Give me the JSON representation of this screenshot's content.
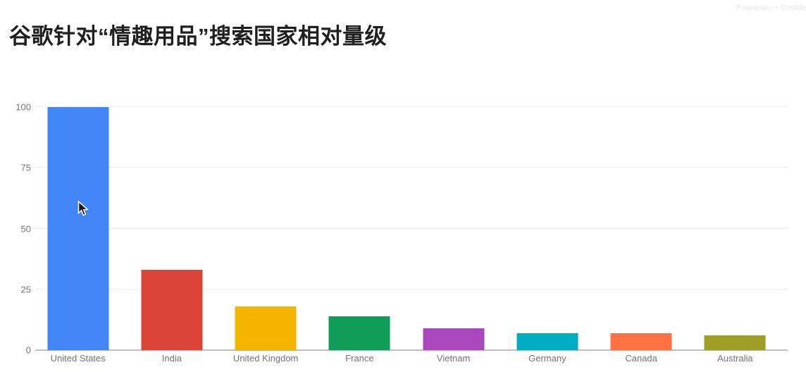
{
  "watermark": "Proprietary + Confide",
  "chart_data": {
    "type": "bar",
    "title": "谷歌针对“情趣用品”搜索国家相对量级",
    "categories": [
      "United States",
      "India",
      "United Kingdom",
      "France",
      "Vietnam",
      "Germany",
      "Canada",
      "Australia"
    ],
    "values": [
      100,
      33,
      18,
      14,
      9,
      7,
      7,
      6
    ],
    "colors": [
      "#4285F4",
      "#DB4437",
      "#F4B400",
      "#0F9D58",
      "#AB47BC",
      "#00ACC1",
      "#FF7043",
      "#9E9D24"
    ],
    "yticks": [
      0,
      25,
      50,
      75,
      100
    ],
    "ylim": [
      0,
      100
    ],
    "xlabel": "",
    "ylabel": "",
    "grid": "horizontal gridlines on",
    "legend": "none",
    "axis_label_color": "#757575",
    "gridline_color": "#ececec",
    "baseline_color": "#bdbdbd"
  }
}
